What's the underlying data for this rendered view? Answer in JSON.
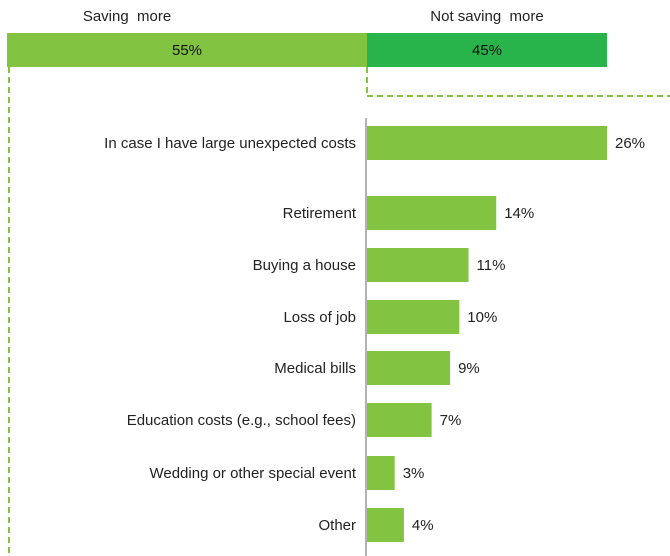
{
  "split": {
    "left_label": "Saving  more",
    "right_label": "Not saving  more",
    "left_value": "55%",
    "right_value": "45%",
    "left_share": 55,
    "right_share": 45
  },
  "colors": {
    "split_left": "#82c341",
    "split_right": "#29b34b",
    "bar": "#82c341",
    "dashed_line": "#82c341",
    "axis": "#b3b3b3"
  },
  "chart_data": {
    "type": "bar",
    "orientation": "horizontal",
    "categories": [
      "In case I have large unexpected costs",
      "Retirement",
      "Buying a house",
      "Loss of job",
      "Medical bills",
      "Education costs (e.g., school fees)",
      "Wedding or other special event",
      "Other"
    ],
    "values": [
      26,
      14,
      11,
      10,
      9,
      7,
      3,
      4
    ],
    "value_labels": [
      "26%",
      "14%",
      "11%",
      "10%",
      "9%",
      "7%",
      "3%",
      "4%"
    ],
    "xlim": [
      0,
      26
    ]
  }
}
